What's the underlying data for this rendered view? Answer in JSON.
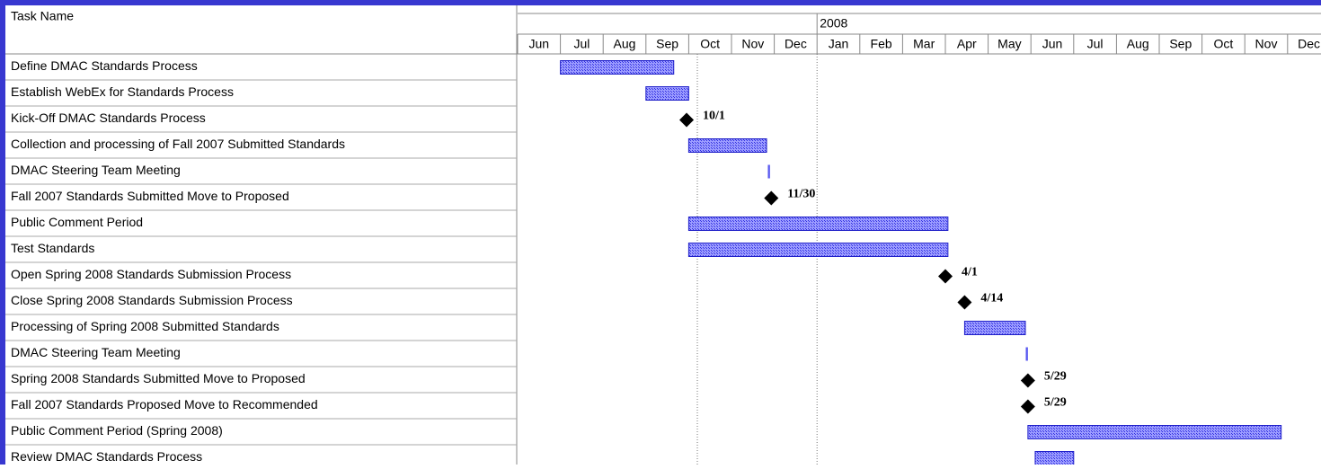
{
  "chart_data": {
    "type": "gantt",
    "column_header": "Task Name",
    "xlim": [
      0,
      19
    ],
    "timeline": [
      {
        "year": null,
        "months": [
          "Jun",
          "Jul",
          "Aug",
          "Sep",
          "Oct",
          "Nov",
          "Dec"
        ]
      },
      {
        "year": "2008",
        "months": [
          "Jan",
          "Feb",
          "Mar",
          "Apr",
          "May",
          "Jun",
          "Jul",
          "Aug",
          "Sep",
          "Oct",
          "Nov",
          "Dec"
        ]
      }
    ],
    "color": "#5a5af0",
    "tasks": [
      {
        "name": "Define DMAC Standards Process",
        "start": 1.0,
        "end": 3.65
      },
      {
        "name": "Establish WebEx for Standards Process",
        "start": 3.0,
        "end": 4.0
      },
      {
        "name": "Kick-Off DMAC Standards Process",
        "milestone": 3.95,
        "label": "10/1"
      },
      {
        "name": "Collection and processing of Fall 2007 Submitted Standards",
        "start": 4.0,
        "end": 5.82
      },
      {
        "name": "DMAC Steering Team Meeting",
        "start": 5.85,
        "end": 5.9
      },
      {
        "name": "Fall 2007 Standards Submitted Move to Proposed",
        "milestone": 5.93,
        "label": "11/30"
      },
      {
        "name": "Public Comment Period",
        "start": 4.0,
        "end": 10.06
      },
      {
        "name": "Test Standards",
        "start": 4.0,
        "end": 10.06
      },
      {
        "name": "Open Spring 2008 Standards Submission Process",
        "milestone": 10.0,
        "label": "4/1"
      },
      {
        "name": "Close Spring 2008 Standards Submission Process",
        "milestone": 10.45,
        "label": "4/14"
      },
      {
        "name": "Processing of Spring 2008 Submitted Standards",
        "start": 10.45,
        "end": 11.87
      },
      {
        "name": "DMAC Steering Team Meeting",
        "start": 11.88,
        "end": 11.93
      },
      {
        "name": "Spring 2008 Standards Submitted Move to Proposed",
        "milestone": 11.93,
        "label": "5/29"
      },
      {
        "name": "Fall 2007 Standards Proposed Move to Recommended",
        "milestone": 11.93,
        "label": "5/29"
      },
      {
        "name": "Public Comment Period (Spring 2008)",
        "start": 11.93,
        "end": 17.85
      },
      {
        "name": "Review DMAC Standards Process",
        "start": 12.1,
        "end": 13.0
      }
    ]
  }
}
